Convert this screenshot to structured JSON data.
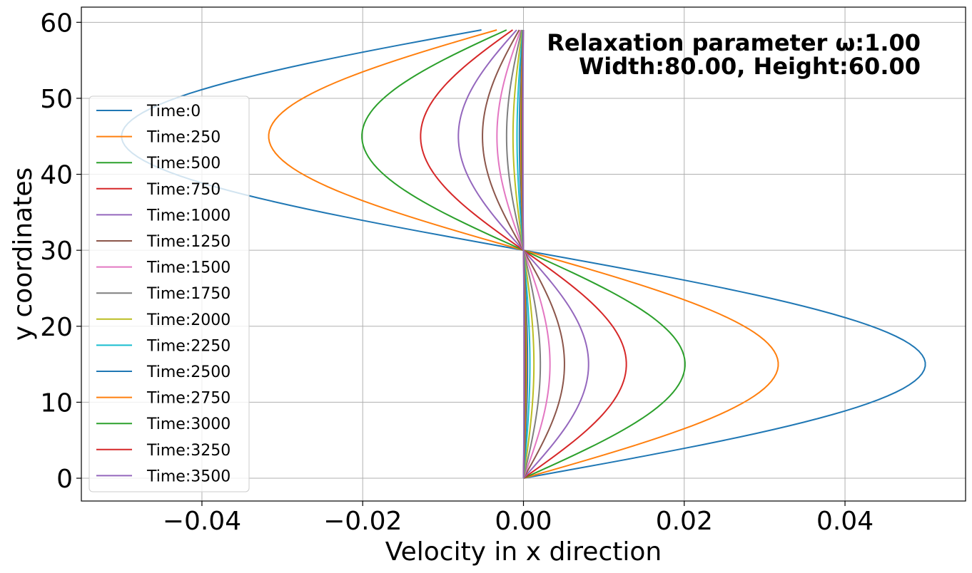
{
  "chart_data": {
    "type": "line",
    "title": "",
    "xlabel": "Velocity in x direction",
    "ylabel": "y coordinates",
    "xlim": [
      -0.055,
      0.055
    ],
    "ylim": [
      -3,
      62
    ],
    "x_ticks": [
      -0.04,
      -0.02,
      0.0,
      0.02,
      0.04
    ],
    "x_tick_labels": [
      "−0.04",
      "−0.02",
      "0.00",
      "0.02",
      "0.04"
    ],
    "y_ticks": [
      0,
      10,
      20,
      30,
      40,
      50,
      60
    ],
    "y_tick_labels": [
      "0",
      "10",
      "20",
      "30",
      "40",
      "50",
      "60"
    ],
    "grid": true,
    "legend_position": "center-left",
    "annotation_lines": [
      "Relaxation parameter ω:1.00",
      "Width:80.00, Height:60.00"
    ],
    "profile": "sinusoidal",
    "y_range": [
      0,
      59
    ],
    "series": [
      {
        "name": "Time:0",
        "amplitude": 0.05,
        "color": "#1f77b4"
      },
      {
        "name": "Time:250",
        "amplitude": 0.0317,
        "color": "#ff7f0e"
      },
      {
        "name": "Time:500",
        "amplitude": 0.0201,
        "color": "#2ca02c"
      },
      {
        "name": "Time:750",
        "amplitude": 0.0128,
        "color": "#d62728"
      },
      {
        "name": "Time:1000",
        "amplitude": 0.0081,
        "color": "#9467bd"
      },
      {
        "name": "Time:1250",
        "amplitude": 0.0051,
        "color": "#8c564b"
      },
      {
        "name": "Time:1500",
        "amplitude": 0.0033,
        "color": "#e377c2"
      },
      {
        "name": "Time:1750",
        "amplitude": 0.0021,
        "color": "#7f7f7f"
      },
      {
        "name": "Time:2000",
        "amplitude": 0.0013,
        "color": "#bcbd22"
      },
      {
        "name": "Time:2250",
        "amplitude": 0.0008,
        "color": "#17becf"
      },
      {
        "name": "Time:2500",
        "amplitude": 0.0005,
        "color": "#1f77b4"
      },
      {
        "name": "Time:2750",
        "amplitude": 0.00034,
        "color": "#ff7f0e"
      },
      {
        "name": "Time:3000",
        "amplitude": 0.00021,
        "color": "#2ca02c"
      },
      {
        "name": "Time:3250",
        "amplitude": 0.00014,
        "color": "#d62728"
      },
      {
        "name": "Time:3500",
        "amplitude": 9e-05,
        "color": "#9467bd"
      }
    ]
  }
}
